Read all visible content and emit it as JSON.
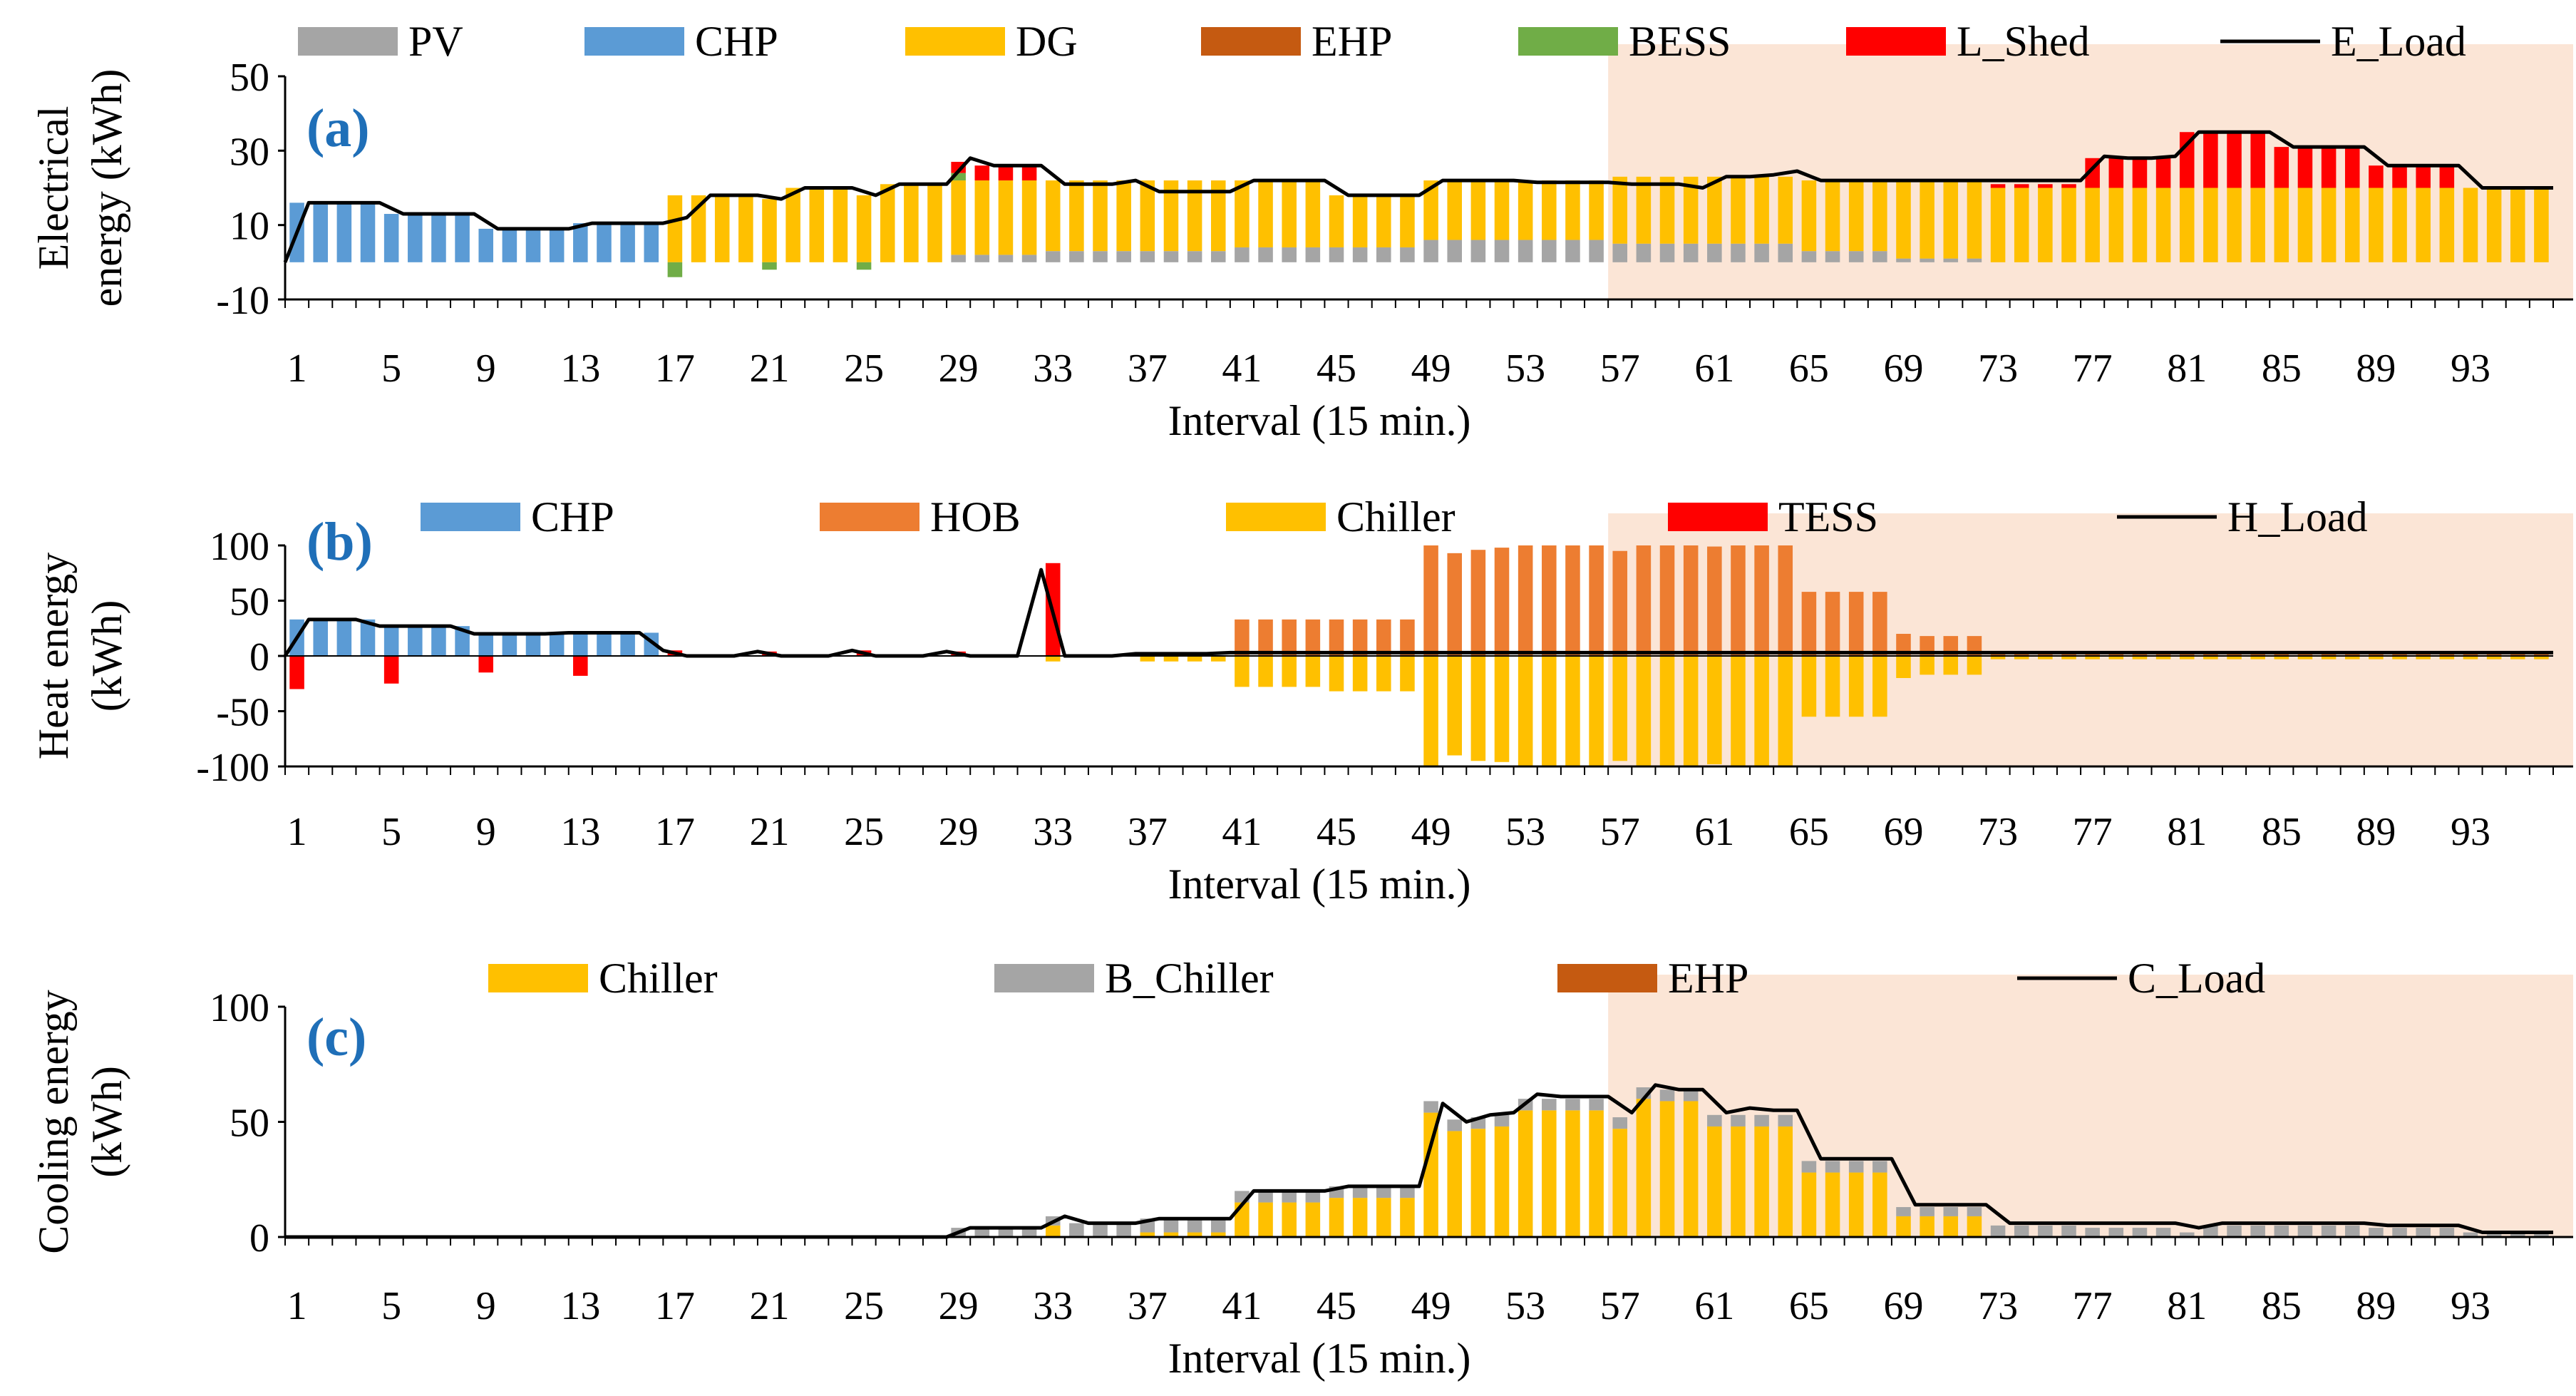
{
  "colors": {
    "PV": "#a5a5a5",
    "CHP": "#5b9bd5",
    "DG": "#ffc000",
    "EHP": "#c55a11",
    "BESS": "#70ad47",
    "L_Shed": "#ff0000",
    "HOB": "#ed7d31",
    "Chiller": "#ffc000",
    "TESS": "#ff0000",
    "B_Chiller": "#a5a5a5",
    "load": "#000000",
    "shade": "#fbe5d6",
    "label": "#1f6fb8"
  },
  "chart_data": [
    {
      "id": "a",
      "type": "bar",
      "panel_label": "(a)",
      "title": "",
      "ylabel_lines": [
        "Electrical",
        "energy (kWh)"
      ],
      "xlabel": "Interval (15 min.)",
      "xticks": [
        "1",
        "5",
        "9",
        "13",
        "17",
        "21",
        "25",
        "29",
        "33",
        "37",
        "41",
        "45",
        "49",
        "53",
        "57",
        "61",
        "65",
        "69",
        "73",
        "77",
        "81",
        "85",
        "89",
        "93"
      ],
      "yticks": [
        "-10",
        "10",
        "30",
        "50"
      ],
      "ylim": [
        -10,
        50
      ],
      "n_intervals": 96,
      "shaded_from_interval": 56,
      "legend": [
        "PV",
        "CHP",
        "DG",
        "EHP",
        "BESS",
        "L_Shed",
        "E_Load"
      ],
      "series": [
        {
          "name": "PV",
          "runs": [
            [
              1,
              28,
              0
            ],
            [
              29,
              32,
              2
            ],
            [
              33,
              40,
              3
            ],
            [
              41,
              48,
              4
            ],
            [
              49,
              56,
              6
            ],
            [
              57,
              64,
              5
            ],
            [
              65,
              68,
              3
            ],
            [
              69,
              72,
              1
            ],
            [
              73,
              96,
              0
            ]
          ]
        },
        {
          "name": "CHP",
          "runs": [
            [
              1,
              4,
              16
            ],
            [
              5,
              8,
              13
            ],
            [
              9,
              12,
              9
            ],
            [
              13,
              16,
              10.5
            ],
            [
              17,
              96,
              0
            ]
          ]
        },
        {
          "name": "DG",
          "runs": [
            [
              1,
              16,
              0
            ],
            [
              17,
              17,
              18
            ],
            [
              18,
              20,
              18
            ],
            [
              21,
              21,
              17
            ],
            [
              22,
              24,
              20
            ],
            [
              25,
              25,
              18
            ],
            [
              26,
              28,
              21
            ],
            [
              29,
              32,
              20
            ],
            [
              33,
              40,
              19
            ],
            [
              41,
              44,
              18
            ],
            [
              45,
              48,
              14
            ],
            [
              49,
              56,
              16
            ],
            [
              57,
              64,
              18
            ],
            [
              65,
              68,
              19
            ],
            [
              69,
              72,
              21
            ],
            [
              73,
              96,
              20
            ]
          ]
        },
        {
          "name": "EHP",
          "runs": [
            [
              1,
              96,
              0
            ]
          ]
        },
        {
          "name": "BESS",
          "runs": [
            [
              1,
              16,
              0
            ],
            [
              17,
              17,
              -4
            ],
            [
              18,
              20,
              0
            ],
            [
              21,
              21,
              -2
            ],
            [
              22,
              24,
              0
            ],
            [
              25,
              25,
              -2
            ],
            [
              26,
              28,
              0
            ],
            [
              29,
              29,
              2
            ],
            [
              30,
              96,
              0
            ]
          ]
        },
        {
          "name": "L_Shed",
          "runs": [
            [
              1,
              28,
              0
            ],
            [
              29,
              29,
              3
            ],
            [
              30,
              32,
              4
            ],
            [
              33,
              72,
              0
            ],
            [
              73,
              76,
              1
            ],
            [
              77,
              80,
              8
            ],
            [
              81,
              84,
              15
            ],
            [
              85,
              88,
              11
            ],
            [
              89,
              92,
              6
            ],
            [
              93,
              96,
              0
            ]
          ]
        }
      ],
      "load": {
        "name": "E_Load",
        "values": [
          0,
          16,
          16,
          16,
          16,
          13,
          13,
          13,
          13,
          9,
          9,
          9,
          9,
          10.5,
          10.5,
          10.5,
          10.5,
          12,
          18,
          18,
          18,
          17,
          20,
          20,
          20,
          18,
          21,
          21,
          21,
          28,
          26,
          26,
          26,
          21,
          21,
          21,
          22,
          19,
          19,
          19,
          19,
          22,
          22,
          22,
          22,
          18,
          18,
          18,
          18,
          22,
          22,
          22,
          22,
          21.5,
          21.5,
          21.5,
          21.5,
          21,
          21,
          21,
          20,
          23,
          23,
          23.5,
          24.5,
          22,
          22,
          22,
          22,
          22,
          22,
          22,
          22,
          22,
          22,
          22,
          22,
          28.5,
          28,
          28,
          28.5,
          35,
          35,
          35,
          35,
          31,
          31,
          31,
          31,
          26,
          26,
          26,
          26,
          20,
          20,
          20,
          20
        ]
      }
    },
    {
      "id": "b",
      "type": "bar",
      "panel_label": "(b)",
      "title": "",
      "ylabel_lines": [
        "Heat energy",
        "(kWh)"
      ],
      "xlabel": "Interval (15 min.)",
      "xticks": [
        "1",
        "5",
        "9",
        "13",
        "17",
        "21",
        "25",
        "29",
        "33",
        "37",
        "41",
        "45",
        "49",
        "53",
        "57",
        "61",
        "65",
        "69",
        "73",
        "77",
        "81",
        "85",
        "89",
        "93"
      ],
      "yticks": [
        "-100",
        "-50",
        "0",
        "50",
        "100"
      ],
      "ylim": [
        -100,
        100
      ],
      "n_intervals": 96,
      "shaded_from_interval": 56,
      "legend": [
        "CHP",
        "HOB",
        "Chiller",
        "TESS",
        "H_Load"
      ],
      "series": [
        {
          "name": "CHP",
          "runs": [
            [
              1,
              4,
              33
            ],
            [
              5,
              8,
              27
            ],
            [
              9,
              12,
              20
            ],
            [
              13,
              16,
              21
            ],
            [
              17,
              96,
              0
            ]
          ]
        },
        {
          "name": "HOB",
          "runs": [
            [
              1,
              40,
              0
            ],
            [
              41,
              48,
              33
            ],
            [
              49,
              49,
              100
            ],
            [
              50,
              50,
              93
            ],
            [
              51,
              51,
              96
            ],
            [
              52,
              52,
              98
            ],
            [
              53,
              56,
              100
            ],
            [
              57,
              57,
              95
            ],
            [
              58,
              60,
              100
            ],
            [
              61,
              61,
              99
            ],
            [
              62,
              64,
              100
            ],
            [
              65,
              68,
              58
            ],
            [
              69,
              69,
              20
            ],
            [
              70,
              72,
              18
            ],
            [
              73,
              96,
              3
            ]
          ]
        },
        {
          "name": "Chiller",
          "runs": [
            [
              1,
              32,
              0
            ],
            [
              33,
              33,
              -5
            ],
            [
              34,
              36,
              0
            ],
            [
              37,
              40,
              -5
            ],
            [
              41,
              44,
              -28
            ],
            [
              45,
              48,
              -32
            ],
            [
              49,
              49,
              -100
            ],
            [
              50,
              50,
              -90
            ],
            [
              51,
              51,
              -95
            ],
            [
              52,
              52,
              -96
            ],
            [
              53,
              56,
              -100
            ],
            [
              57,
              57,
              -95
            ],
            [
              58,
              60,
              -100
            ],
            [
              61,
              61,
              -98
            ],
            [
              62,
              64,
              -100
            ],
            [
              65,
              68,
              -55
            ],
            [
              69,
              69,
              -20
            ],
            [
              70,
              72,
              -17
            ],
            [
              73,
              96,
              -3
            ]
          ]
        },
        {
          "name": "TESS",
          "runs": [
            [
              1,
              1,
              -30
            ],
            [
              2,
              4,
              0
            ],
            [
              5,
              5,
              -25
            ],
            [
              6,
              8,
              0
            ],
            [
              9,
              9,
              -15
            ],
            [
              10,
              12,
              0
            ],
            [
              13,
              13,
              -18
            ],
            [
              14,
              16,
              0
            ],
            [
              17,
              17,
              5
            ],
            [
              18,
              20,
              0
            ],
            [
              21,
              21,
              4
            ],
            [
              22,
              24,
              0
            ],
            [
              25,
              25,
              5
            ],
            [
              26,
              28,
              0
            ],
            [
              29,
              29,
              4
            ],
            [
              30,
              32,
              0
            ],
            [
              33,
              33,
              84
            ],
            [
              34,
              96,
              0
            ]
          ]
        }
      ],
      "load": {
        "name": "H_Load",
        "values": [
          0,
          33,
          33,
          33,
          27,
          27,
          27,
          27,
          20,
          20,
          20,
          20,
          21,
          21,
          21,
          21,
          5,
          0,
          0,
          0,
          4,
          0,
          0,
          0,
          5,
          0,
          0,
          0,
          4,
          0,
          0,
          0,
          78,
          0,
          0,
          0,
          2,
          2,
          2,
          2,
          3,
          3,
          3,
          3,
          3,
          3,
          3,
          3,
          3,
          3,
          3,
          3,
          3,
          3,
          3,
          3,
          3,
          3,
          3,
          3,
          3,
          3,
          3,
          3,
          3,
          3,
          3,
          3,
          3,
          3,
          3,
          3,
          3,
          3,
          3,
          3,
          3,
          3,
          3,
          3,
          3,
          3,
          3,
          3,
          3,
          3,
          3,
          3,
          3,
          3,
          3,
          3,
          3,
          3,
          3,
          3,
          3
        ]
      }
    },
    {
      "id": "c",
      "type": "bar",
      "panel_label": "(c)",
      "title": "",
      "ylabel_lines": [
        "Cooling energy",
        "(kWh)"
      ],
      "xlabel": "Interval (15 min.)",
      "xticks": [
        "1",
        "5",
        "9",
        "13",
        "17",
        "21",
        "25",
        "29",
        "33",
        "37",
        "41",
        "45",
        "49",
        "53",
        "57",
        "61",
        "65",
        "69",
        "73",
        "77",
        "81",
        "85",
        "89",
        "93"
      ],
      "yticks": [
        "0",
        "50",
        "100"
      ],
      "ylim": [
        0,
        100
      ],
      "n_intervals": 96,
      "shaded_from_interval": 56,
      "legend": [
        "Chiller",
        "B_Chiller",
        "EHP",
        "C_Load"
      ],
      "series": [
        {
          "name": "Chiller",
          "runs": [
            [
              1,
              32,
              0
            ],
            [
              33,
              33,
              5
            ],
            [
              34,
              36,
              0
            ],
            [
              37,
              40,
              2
            ],
            [
              41,
              44,
              15
            ],
            [
              45,
              48,
              17
            ],
            [
              49,
              49,
              54
            ],
            [
              50,
              50,
              46
            ],
            [
              51,
              51,
              47
            ],
            [
              52,
              52,
              48
            ],
            [
              53,
              56,
              55
            ],
            [
              57,
              57,
              47
            ],
            [
              58,
              58,
              60
            ],
            [
              59,
              60,
              59
            ],
            [
              61,
              64,
              48
            ],
            [
              65,
              68,
              28
            ],
            [
              69,
              69,
              9
            ],
            [
              70,
              72,
              9
            ],
            [
              73,
              96,
              0
            ]
          ]
        },
        {
          "name": "B_Chiller",
          "runs": [
            [
              1,
              28,
              0
            ],
            [
              29,
              32,
              4
            ],
            [
              33,
              33,
              4
            ],
            [
              34,
              36,
              6
            ],
            [
              37,
              40,
              6
            ],
            [
              41,
              44,
              5
            ],
            [
              45,
              48,
              5
            ],
            [
              49,
              64,
              5
            ],
            [
              65,
              68,
              5
            ],
            [
              69,
              72,
              4
            ],
            [
              73,
              76,
              5
            ],
            [
              77,
              80,
              4
            ],
            [
              81,
              81,
              2
            ],
            [
              82,
              84,
              5
            ],
            [
              85,
              88,
              5
            ],
            [
              89,
              92,
              4
            ],
            [
              93,
              96,
              2
            ]
          ]
        },
        {
          "name": "EHP",
          "runs": [
            [
              1,
              96,
              0
            ]
          ]
        }
      ],
      "load": {
        "name": "C_Load",
        "values": [
          0,
          0,
          0,
          0,
          0,
          0,
          0,
          0,
          0,
          0,
          0,
          0,
          0,
          0,
          0,
          0,
          0,
          0,
          0,
          0,
          0,
          0,
          0,
          0,
          0,
          0,
          0,
          0,
          0,
          4,
          4,
          4,
          4,
          9,
          6,
          6,
          6,
          8,
          8,
          8,
          8,
          20,
          20,
          20,
          20,
          22,
          22,
          22,
          22,
          58,
          50,
          53,
          54,
          62,
          61,
          61,
          61,
          54,
          66,
          64,
          64,
          54,
          56,
          55,
          55,
          34,
          34,
          34,
          34,
          14,
          14,
          14,
          14,
          6,
          6,
          6,
          6,
          6,
          6,
          6,
          6,
          4,
          6,
          6,
          6,
          6,
          6,
          6,
          6,
          5,
          5,
          5,
          5,
          2,
          2,
          2,
          2
        ]
      }
    }
  ]
}
